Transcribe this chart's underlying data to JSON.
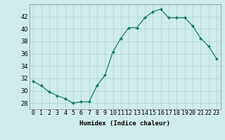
{
  "x": [
    0,
    1,
    2,
    3,
    4,
    5,
    6,
    7,
    8,
    9,
    10,
    11,
    12,
    13,
    14,
    15,
    16,
    17,
    18,
    19,
    20,
    21,
    22,
    23
  ],
  "y": [
    31.5,
    30.8,
    29.8,
    29.2,
    28.7,
    28.0,
    28.2,
    28.2,
    30.8,
    32.5,
    36.3,
    38.5,
    40.2,
    40.2,
    41.8,
    42.8,
    43.2,
    41.8,
    41.8,
    41.8,
    40.5,
    38.5,
    37.2,
    35.2
  ],
  "line_color": "#1a7a6a",
  "marker": "D",
  "marker_size": 2.0,
  "bg_color": "#ceecea",
  "grid_color": "#b0d8d4",
  "xlabel": "Humidex (Indice chaleur)",
  "ylim": [
    27,
    44
  ],
  "xlim": [
    -0.5,
    23.5
  ],
  "yticks": [
    28,
    30,
    32,
    34,
    36,
    38,
    40,
    42
  ],
  "xtick_labels": [
    "0",
    "1",
    "2",
    "3",
    "4",
    "5",
    "6",
    "7",
    "8",
    "9",
    "10",
    "11",
    "12",
    "13",
    "14",
    "15",
    "16",
    "17",
    "18",
    "19",
    "20",
    "21",
    "22",
    "23"
  ],
  "label_fontsize": 6.5,
  "tick_fontsize": 6.0,
  "linewidth": 0.9
}
